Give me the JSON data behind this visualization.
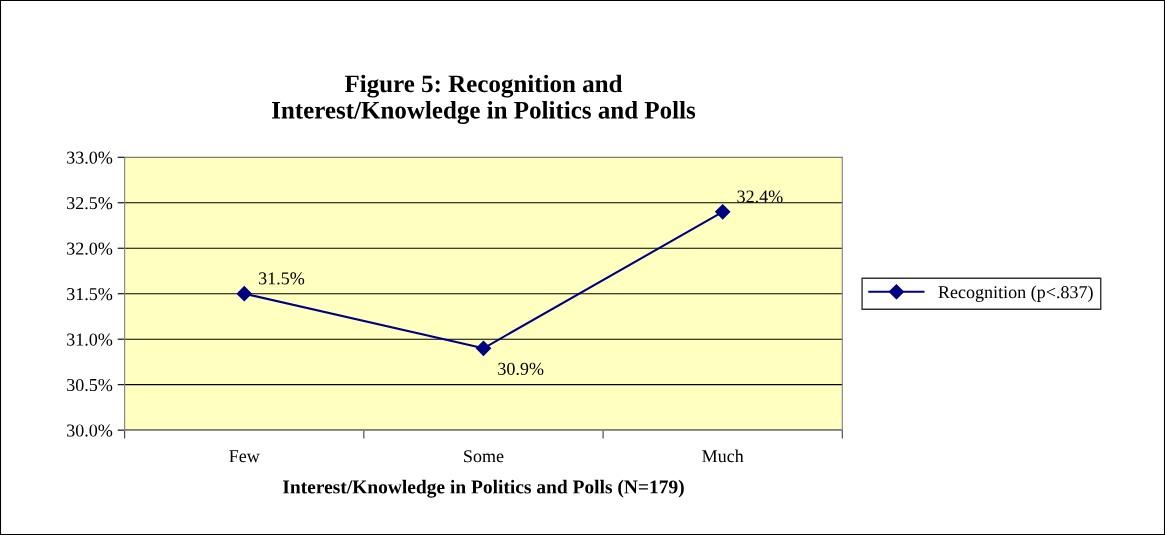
{
  "chart_data": {
    "type": "line",
    "title": "Figure 5: Recognition and\nInterest/Knowledge in Politics and Polls",
    "xlabel": "Interest/Knowledge in Politics and Polls (N=179)",
    "categories": [
      "Few",
      "Some",
      "Much"
    ],
    "series": [
      {
        "name": "Recognition (p<.837)",
        "color": "#000080",
        "values": [
          31.5,
          30.9,
          32.4
        ],
        "value_labels": [
          "31.5%",
          "30.9%",
          "32.4%"
        ]
      }
    ],
    "ylim": [
      30,
      33
    ],
    "yticks": [
      {
        "value": 30,
        "label": "30.0%"
      },
      {
        "value": 30.5,
        "label": "30.5%"
      },
      {
        "value": 31,
        "label": "31.0%"
      },
      {
        "value": 31.5,
        "label": "31.5%"
      },
      {
        "value": 32,
        "label": "32.0%"
      },
      {
        "value": 32.5,
        "label": "32.5%"
      },
      {
        "value": 33,
        "label": "33.0%"
      }
    ],
    "grid": "y",
    "legend": "right",
    "marker": "diamond",
    "line_style": "solid"
  }
}
